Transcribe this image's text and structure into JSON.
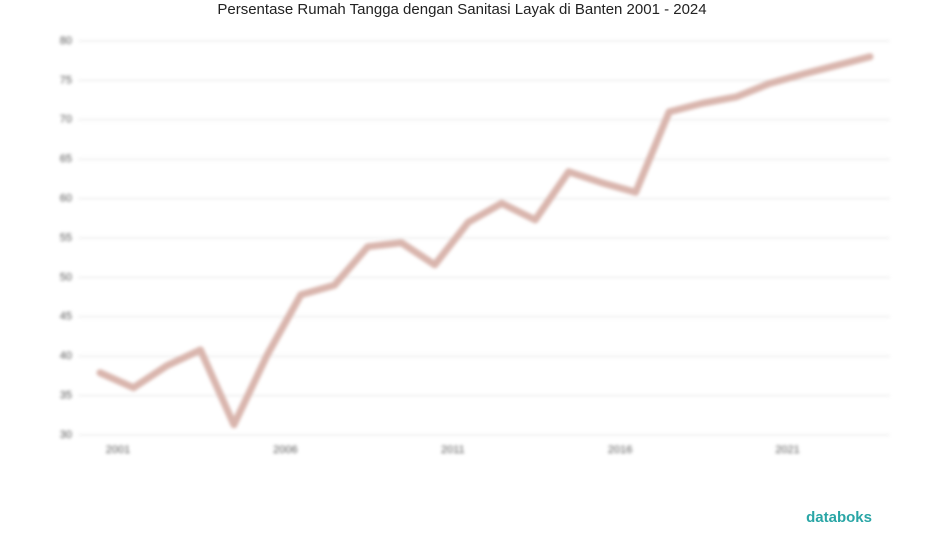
{
  "chart_data": {
    "type": "line",
    "title": "Persentase Rumah Tangga dengan Sanitasi Layak di Banten 2001 - 2024",
    "x": [
      2001,
      2002,
      2003,
      2004,
      2005,
      2006,
      2007,
      2008,
      2009,
      2010,
      2011,
      2012,
      2013,
      2014,
      2015,
      2016,
      2017,
      2018,
      2019,
      2020,
      2021,
      2022,
      2023,
      2024
    ],
    "series": [
      {
        "name": "Banten",
        "color": "#d9b5ad",
        "values": [
          37.9,
          36.0,
          38.8,
          40.8,
          31.3,
          40.2,
          47.8,
          49.0,
          53.9,
          54.4,
          51.6,
          57.0,
          59.4,
          57.3,
          63.4,
          62.0,
          60.8,
          71.0,
          72.1,
          72.9,
          74.6,
          75.8,
          76.9,
          78.0
        ]
      }
    ],
    "xlim": [
      2001,
      2024
    ],
    "xticks": [
      2001,
      2006,
      2011,
      2016,
      2021
    ],
    "ylim": [
      30,
      80
    ],
    "yticks": [
      30,
      35,
      40,
      45,
      50,
      55,
      60,
      65,
      70,
      75,
      80
    ],
    "grid": true,
    "brand": "databoks"
  }
}
